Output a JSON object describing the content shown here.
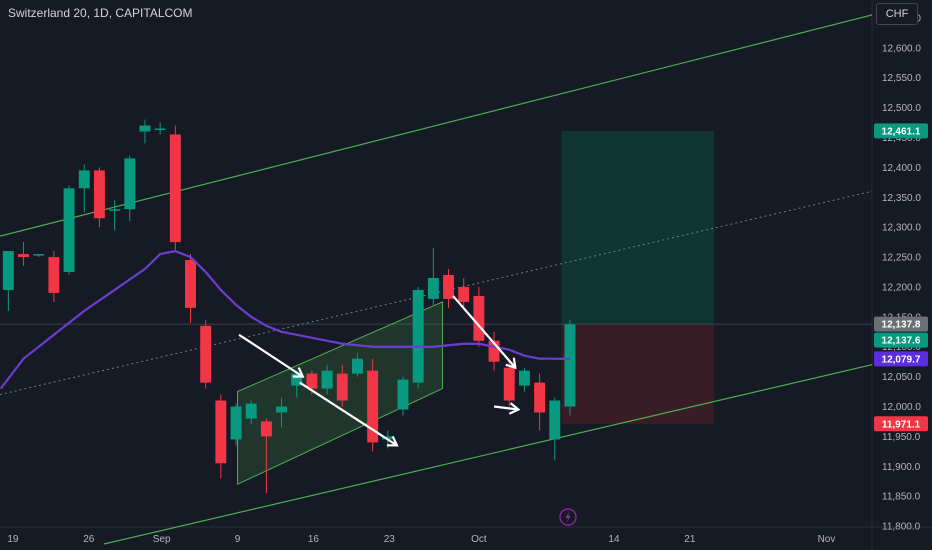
{
  "header": {
    "title": "Switzerland 20, 1D, CAPITALCOM",
    "currency": "CHF"
  },
  "colors": {
    "background": "#161a25",
    "up": "#089981",
    "down": "#f23645",
    "ma": "#6a3fd0",
    "channel": "#4caf50",
    "arrow": "#ffffff",
    "target_zone": "#0f3b38",
    "stop_zone": "#3f1d26",
    "flag_target": "#089981",
    "flag_entry_gray": "#6d6f76",
    "flag_ma": "#5b2ee0",
    "flag_stop": "#f23645"
  },
  "icons": {
    "bottom_center": "flash-icon"
  },
  "chart_data": {
    "type": "candlestick",
    "title": "Switzerland 20, 1D, CAPITALCOM",
    "ylim": [
      11760,
      12680
    ],
    "y_ticks": [
      11800,
      11850,
      11900,
      11950,
      12000,
      12050,
      12100,
      12150,
      12200,
      12250,
      12300,
      12350,
      12400,
      12450,
      12500,
      12550,
      12600,
      12650
    ],
    "y_tick_labels": [
      "11,800.0",
      "11,850.0",
      "11,900.0",
      "11,950.0",
      "12,000.0",
      "12,050.0",
      "12,100.0",
      "12,150.0",
      "12,200.0",
      "12,250.0",
      "12,300.0",
      "12,350.0",
      "12,400.0",
      "12,450.0",
      "12,500.0",
      "12,550.0",
      "12,600.0",
      "12,650.0"
    ],
    "x_ticks": [
      {
        "label": "19",
        "idx": 0.3
      },
      {
        "label": "26",
        "idx": 5.3
      },
      {
        "label": "Sep",
        "idx": 10.1
      },
      {
        "label": "9",
        "idx": 15.1
      },
      {
        "label": "16",
        "idx": 20.1
      },
      {
        "label": "23",
        "idx": 25.1
      },
      {
        "label": "Oct",
        "idx": 31.0
      },
      {
        "label": "14",
        "idx": 39.9
      },
      {
        "label": "21",
        "idx": 44.9
      },
      {
        "label": "Nov",
        "idx": 53.9
      }
    ],
    "xlim": [
      -0.55,
      56.9
    ],
    "candles": [
      {
        "o": 12195,
        "h": 12260,
        "l": 12160,
        "c": 12260
      },
      {
        "o": 12255,
        "h": 12275,
        "l": 12235,
        "c": 12250
      },
      {
        "o": 12255,
        "h": 12255,
        "l": 12250,
        "c": 12255
      },
      {
        "o": 12250,
        "h": 12260,
        "l": 12175,
        "c": 12190
      },
      {
        "o": 12225,
        "h": 12370,
        "l": 12220,
        "c": 12365
      },
      {
        "o": 12365,
        "h": 12405,
        "l": 12325,
        "c": 12395
      },
      {
        "o": 12395,
        "h": 12400,
        "l": 12300,
        "c": 12315
      },
      {
        "o": 12330,
        "h": 12345,
        "l": 12295,
        "c": 12330
      },
      {
        "o": 12330,
        "h": 12420,
        "l": 12310,
        "c": 12415
      },
      {
        "o": 12460,
        "h": 12480,
        "l": 12440,
        "c": 12470
      },
      {
        "o": 12465,
        "h": 12475,
        "l": 12455,
        "c": 12465
      },
      {
        "o": 12455,
        "h": 12470,
        "l": 12260,
        "c": 12275
      },
      {
        "o": 12245,
        "h": 12255,
        "l": 12140,
        "c": 12165
      },
      {
        "o": 12135,
        "h": 12145,
        "l": 12030,
        "c": 12040
      },
      {
        "o": 12010,
        "h": 12020,
        "l": 11880,
        "c": 11905
      },
      {
        "o": 11945,
        "h": 12005,
        "l": 11935,
        "c": 12000
      },
      {
        "o": 11980,
        "h": 12010,
        "l": 11970,
        "c": 12005
      },
      {
        "o": 11975,
        "h": 11980,
        "l": 11855,
        "c": 11950
      },
      {
        "o": 11990,
        "h": 12015,
        "l": 11965,
        "c": 12000
      },
      {
        "o": 12035,
        "h": 12060,
        "l": 12015,
        "c": 12055
      },
      {
        "o": 12055,
        "h": 12060,
        "l": 12020,
        "c": 12030
      },
      {
        "o": 12030,
        "h": 12070,
        "l": 12020,
        "c": 12060
      },
      {
        "o": 12055,
        "h": 12070,
        "l": 12000,
        "c": 12010
      },
      {
        "o": 12055,
        "h": 12090,
        "l": 12050,
        "c": 12080
      },
      {
        "o": 12060,
        "h": 12080,
        "l": 11925,
        "c": 11940
      },
      {
        "o": 11945,
        "h": 11960,
        "l": 11930,
        "c": 11950
      },
      {
        "o": 11995,
        "h": 12050,
        "l": 11985,
        "c": 12045
      },
      {
        "o": 12040,
        "h": 12200,
        "l": 12030,
        "c": 12195
      },
      {
        "o": 12180,
        "h": 12265,
        "l": 12170,
        "c": 12215
      },
      {
        "o": 12220,
        "h": 12230,
        "l": 12165,
        "c": 12180
      },
      {
        "o": 12200,
        "h": 12215,
        "l": 12165,
        "c": 12175
      },
      {
        "o": 12185,
        "h": 12200,
        "l": 12100,
        "c": 12110
      },
      {
        "o": 12110,
        "h": 12125,
        "l": 12060,
        "c": 12075
      },
      {
        "o": 12065,
        "h": 12075,
        "l": 12000,
        "c": 12010
      },
      {
        "o": 12035,
        "h": 12065,
        "l": 12025,
        "c": 12060
      },
      {
        "o": 12040,
        "h": 12055,
        "l": 11960,
        "c": 11990
      },
      {
        "o": 11945,
        "h": 12015,
        "l": 11910,
        "c": 12010
      },
      {
        "o": 12000,
        "h": 12145,
        "l": 11985,
        "c": 12137.6
      }
    ],
    "moving_average": {
      "idx": [
        -0.5,
        1,
        3,
        5,
        7,
        9,
        10,
        11,
        12,
        13,
        14,
        15,
        16,
        17,
        18,
        20,
        22,
        24,
        26,
        28,
        30,
        31,
        32,
        33,
        34,
        35,
        36,
        37
      ],
      "values": [
        12030,
        12080,
        12120,
        12160,
        12195,
        12230,
        12255,
        12260,
        12250,
        12225,
        12195,
        12170,
        12150,
        12135,
        12125,
        12115,
        12105,
        12100,
        12100,
        12100,
        12105,
        12105,
        12100,
        12095,
        12085,
        12080,
        12080,
        12079.7
      ]
    },
    "channel_upper": {
      "p1": [
        -0.55,
        12285
      ],
      "p2": [
        56.9,
        12655
      ]
    },
    "channel_lower": {
      "p1": [
        6.3,
        11770
      ],
      "p2": [
        56.9,
        12070
      ]
    },
    "channel_mid": {
      "p1": [
        -0.55,
        12020
      ],
      "p2": [
        56.9,
        12360
      ]
    },
    "flag_channel": {
      "upper_start": [
        15.1,
        12025
      ],
      "upper_end": [
        28.6,
        12175
      ],
      "lower_start": [
        15.1,
        11870
      ],
      "lower_end": [
        28.6,
        12030
      ]
    },
    "arrows": [
      {
        "from": [
          15.2,
          12120
        ],
        "to": [
          19.4,
          12050
        ]
      },
      {
        "from": [
          19.2,
          12040
        ],
        "to": [
          25.6,
          11935
        ]
      },
      {
        "from": [
          29.3,
          12185
        ],
        "to": [
          33.4,
          12065
        ]
      },
      {
        "from": [
          32.0,
          12000
        ],
        "to": [
          33.6,
          11995
        ]
      }
    ],
    "position": {
      "x_start": 36.45,
      "x_end": 46.5,
      "entry": 12137.6,
      "target": 12461.1,
      "stop": 11971.1
    },
    "level_line": 12137.8,
    "price_flags": [
      {
        "label": "12,461.1",
        "value": 12461.1,
        "kind": "target"
      },
      {
        "label": "12,137.8",
        "value": 12137.8,
        "kind": "gray"
      },
      {
        "label": "12,137.6",
        "value": 12137.6,
        "kind": "target"
      },
      {
        "label": "12,079.7",
        "value": 12079.7,
        "kind": "ma"
      },
      {
        "label": "11,971.1",
        "value": 11971.1,
        "kind": "stop"
      }
    ]
  }
}
